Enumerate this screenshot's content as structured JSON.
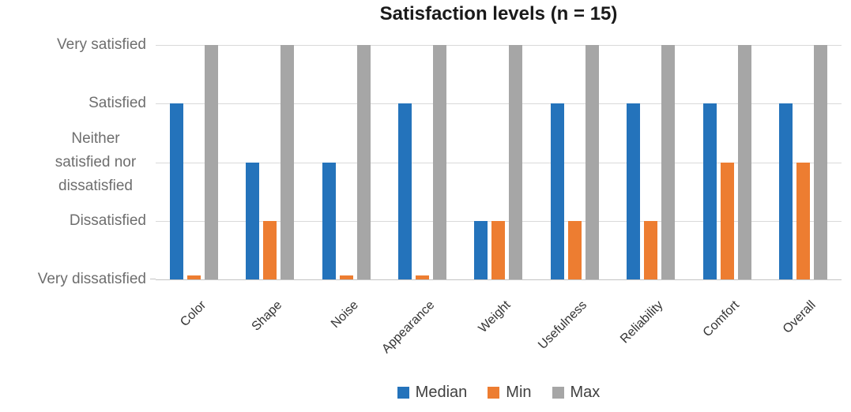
{
  "chart_data": {
    "type": "bar",
    "title": "Satisfaction levels (n = 15)",
    "categories": [
      "Color",
      "Shape",
      "Noise",
      "Appearance",
      "Weight",
      "Usefulness",
      "Reliability",
      "Comfort",
      "Overall"
    ],
    "series": [
      {
        "name": "Median",
        "color": "#2473bb",
        "values": [
          4,
          3,
          3,
          4,
          2,
          4,
          4,
          4,
          4
        ]
      },
      {
        "name": "Min",
        "color": "#ed7d31",
        "values": [
          1,
          2,
          1,
          1,
          2,
          2,
          2,
          3,
          3
        ]
      },
      {
        "name": "Max",
        "color": "#a6a6a6",
        "values": [
          5,
          5,
          5,
          5,
          5,
          5,
          5,
          5,
          5
        ]
      }
    ],
    "y_axis": {
      "scale_min": 1,
      "scale_max": 5,
      "tick_labels_top_to_bottom": [
        "Very satisfied",
        "Satisfied",
        "Neither satisfied nor dissatisfied",
        "Dissatisfied",
        "Very dissatisfied"
      ]
    },
    "legend": {
      "position": "bottom",
      "entries": [
        "Median",
        "Min",
        "Max"
      ]
    },
    "grid": true,
    "colors": {
      "median_bar": "#2473bb",
      "min_bar": "#ed7d31",
      "max_bar": "#a6a6a6",
      "gridline": "#d9d9d9",
      "axis_label_text": "#6e6e6e",
      "category_label_text": "#333333",
      "title_text": "#1a1a1a",
      "legend_text": "#404040"
    }
  }
}
